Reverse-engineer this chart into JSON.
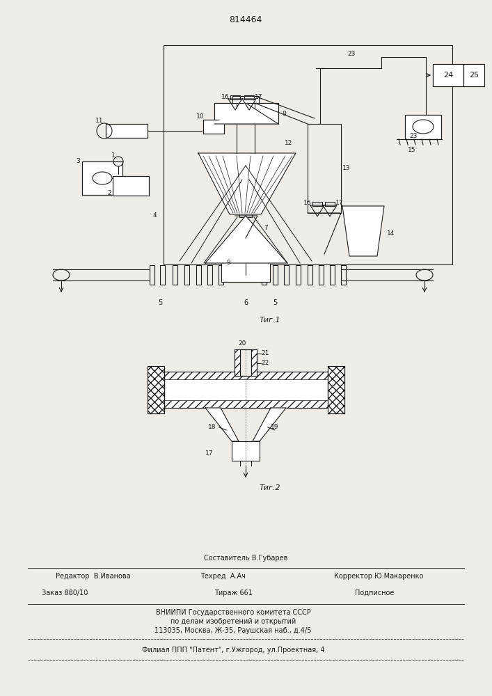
{
  "patent_number": "814464",
  "fig1_label": "Τиг.1",
  "fig2_label": "Τиг.2",
  "editor_line": "Редактор  В.Иванова",
  "composer_line": "Составитель В.Губарев",
  "techred_line": "Техред  А.Ач",
  "corrector_line": "Корректор Ю.Макаренко",
  "order_line": "Заказ 880/10",
  "tirazh_line": "Тираж 661",
  "podpisnoe_line": "Подписное",
  "vnipi_line1": "ВНИИПИ Государственного комитета СССР",
  "vnipi_line2": "по делам изобретений и открытий",
  "vnipi_line3": "113035, Москва, Ж-35, Раушская наб., д.4/5",
  "filial_line": "Филиал ППП \"Патент\", г.Ужгород, ул.Проектная, 4",
  "bg_color": "#f0ede8",
  "line_color": "#1a1a1a"
}
